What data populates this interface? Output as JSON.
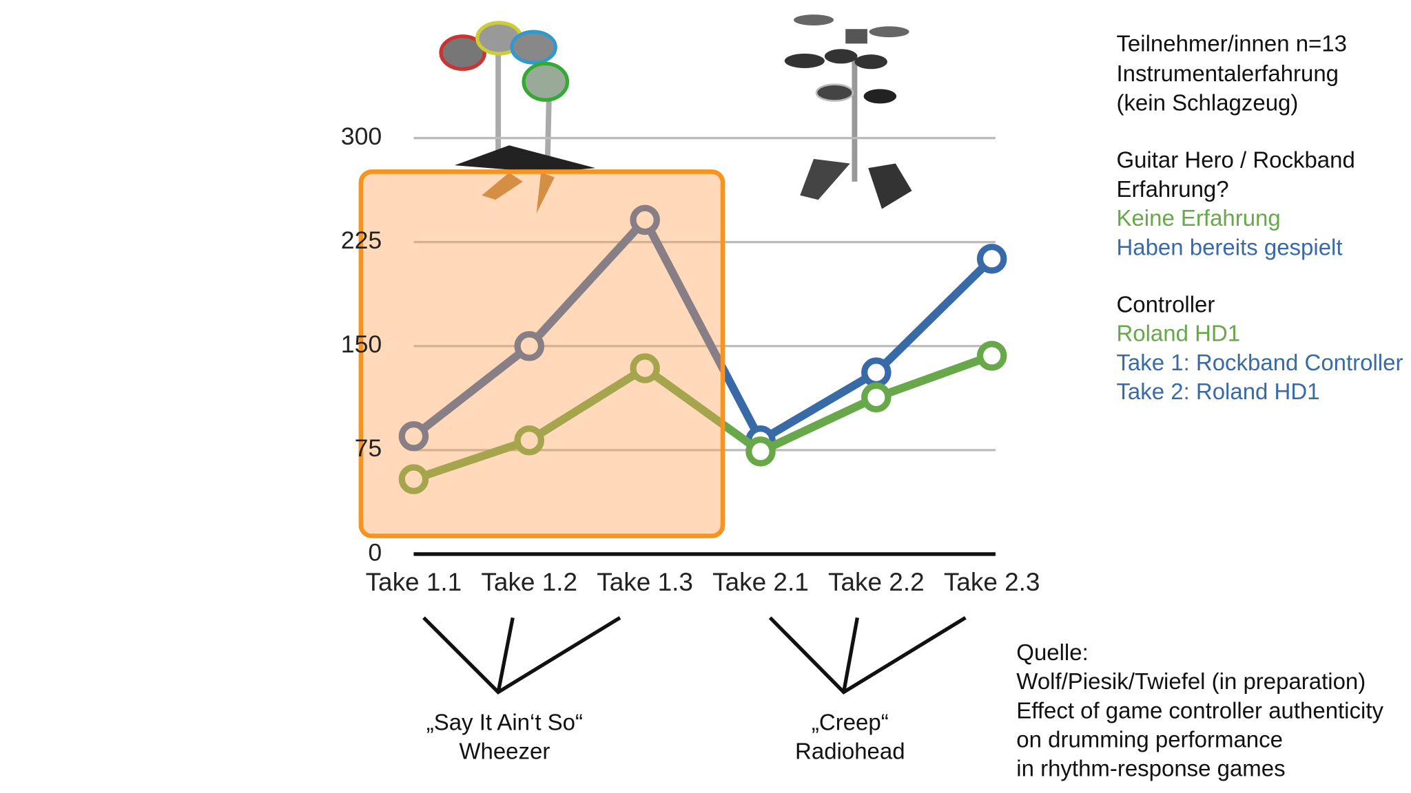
{
  "chart_data": {
    "type": "line",
    "categories": [
      "Take 1.1",
      "Take 1.2",
      "Take 1.3",
      "Take 2.1",
      "Take 2.2",
      "Take 2.3"
    ],
    "series": [
      {
        "name": "Haben bereits gespielt",
        "color": "#386aa8",
        "values": [
          85,
          150,
          241,
          82,
          131,
          213
        ]
      },
      {
        "name": "Keine Erfahrung",
        "color": "#68a84a",
        "values": [
          54,
          82,
          134,
          74,
          113,
          143
        ]
      }
    ],
    "ylim": [
      0,
      300
    ],
    "yticks": [
      0,
      75,
      150,
      225,
      300
    ],
    "grid": true,
    "annotations": [
      [
        "„Say It Ain‘t So“",
        "Wheezer"
      ],
      [
        "„Creep“",
        "Radiohead"
      ]
    ]
  },
  "notes": {
    "participants": [
      "Teilnehmer/innen n=13",
      "Instrumentalerfahrung",
      "(kein Schlagzeug)"
    ],
    "experience": [
      "Guitar Hero / Rockband",
      "Erfahrung?"
    ],
    "controller": {
      "heading": "Controller",
      "items": [
        "Roland HD1",
        "Take 1: Rockband Controller",
        "Take 2: Roland HD1"
      ]
    },
    "source": [
      "Quelle:",
      "Wolf/Piesik/Twiefel (in preparation)",
      "Effect of game controller authenticity",
      "on drumming performance",
      "in rhythm-response games"
    ]
  }
}
